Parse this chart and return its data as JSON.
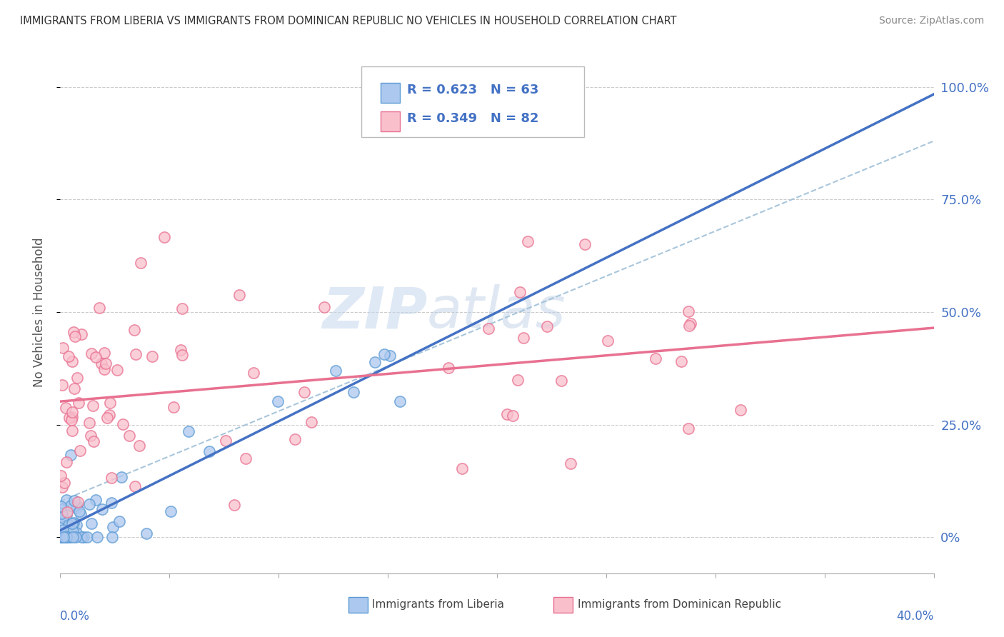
{
  "title": "IMMIGRANTS FROM LIBERIA VS IMMIGRANTS FROM DOMINICAN REPUBLIC NO VEHICLES IN HOUSEHOLD CORRELATION CHART",
  "source": "Source: ZipAtlas.com",
  "ylabel": "No Vehicles in Household",
  "ytick_vals": [
    0,
    25,
    50,
    75,
    100
  ],
  "ytick_labels": [
    "0%",
    "25.0%",
    "50.0%",
    "75.0%",
    "100.0%"
  ],
  "xmin": 0,
  "xmax": 40,
  "ymin": -8,
  "ymax": 108,
  "legend_r1": "R = 0.623",
  "legend_n1": "N = 63",
  "legend_r2": "R = 0.349",
  "legend_n2": "N = 82",
  "color_liberia_fill": "#adc8ee",
  "color_liberia_edge": "#5b9bd5",
  "color_dr_fill": "#f9c0cc",
  "color_dr_edge": "#e87090",
  "color_liberia_line": "#4472c4",
  "color_dr_line": "#e87090",
  "color_ref_line": "#a0c0d8",
  "color_blue_text": "#4472c4",
  "watermark_color": "#d0dff0",
  "label_liberia": "Immigrants from Liberia",
  "label_dr": "Immigrants from Dominican Republic"
}
